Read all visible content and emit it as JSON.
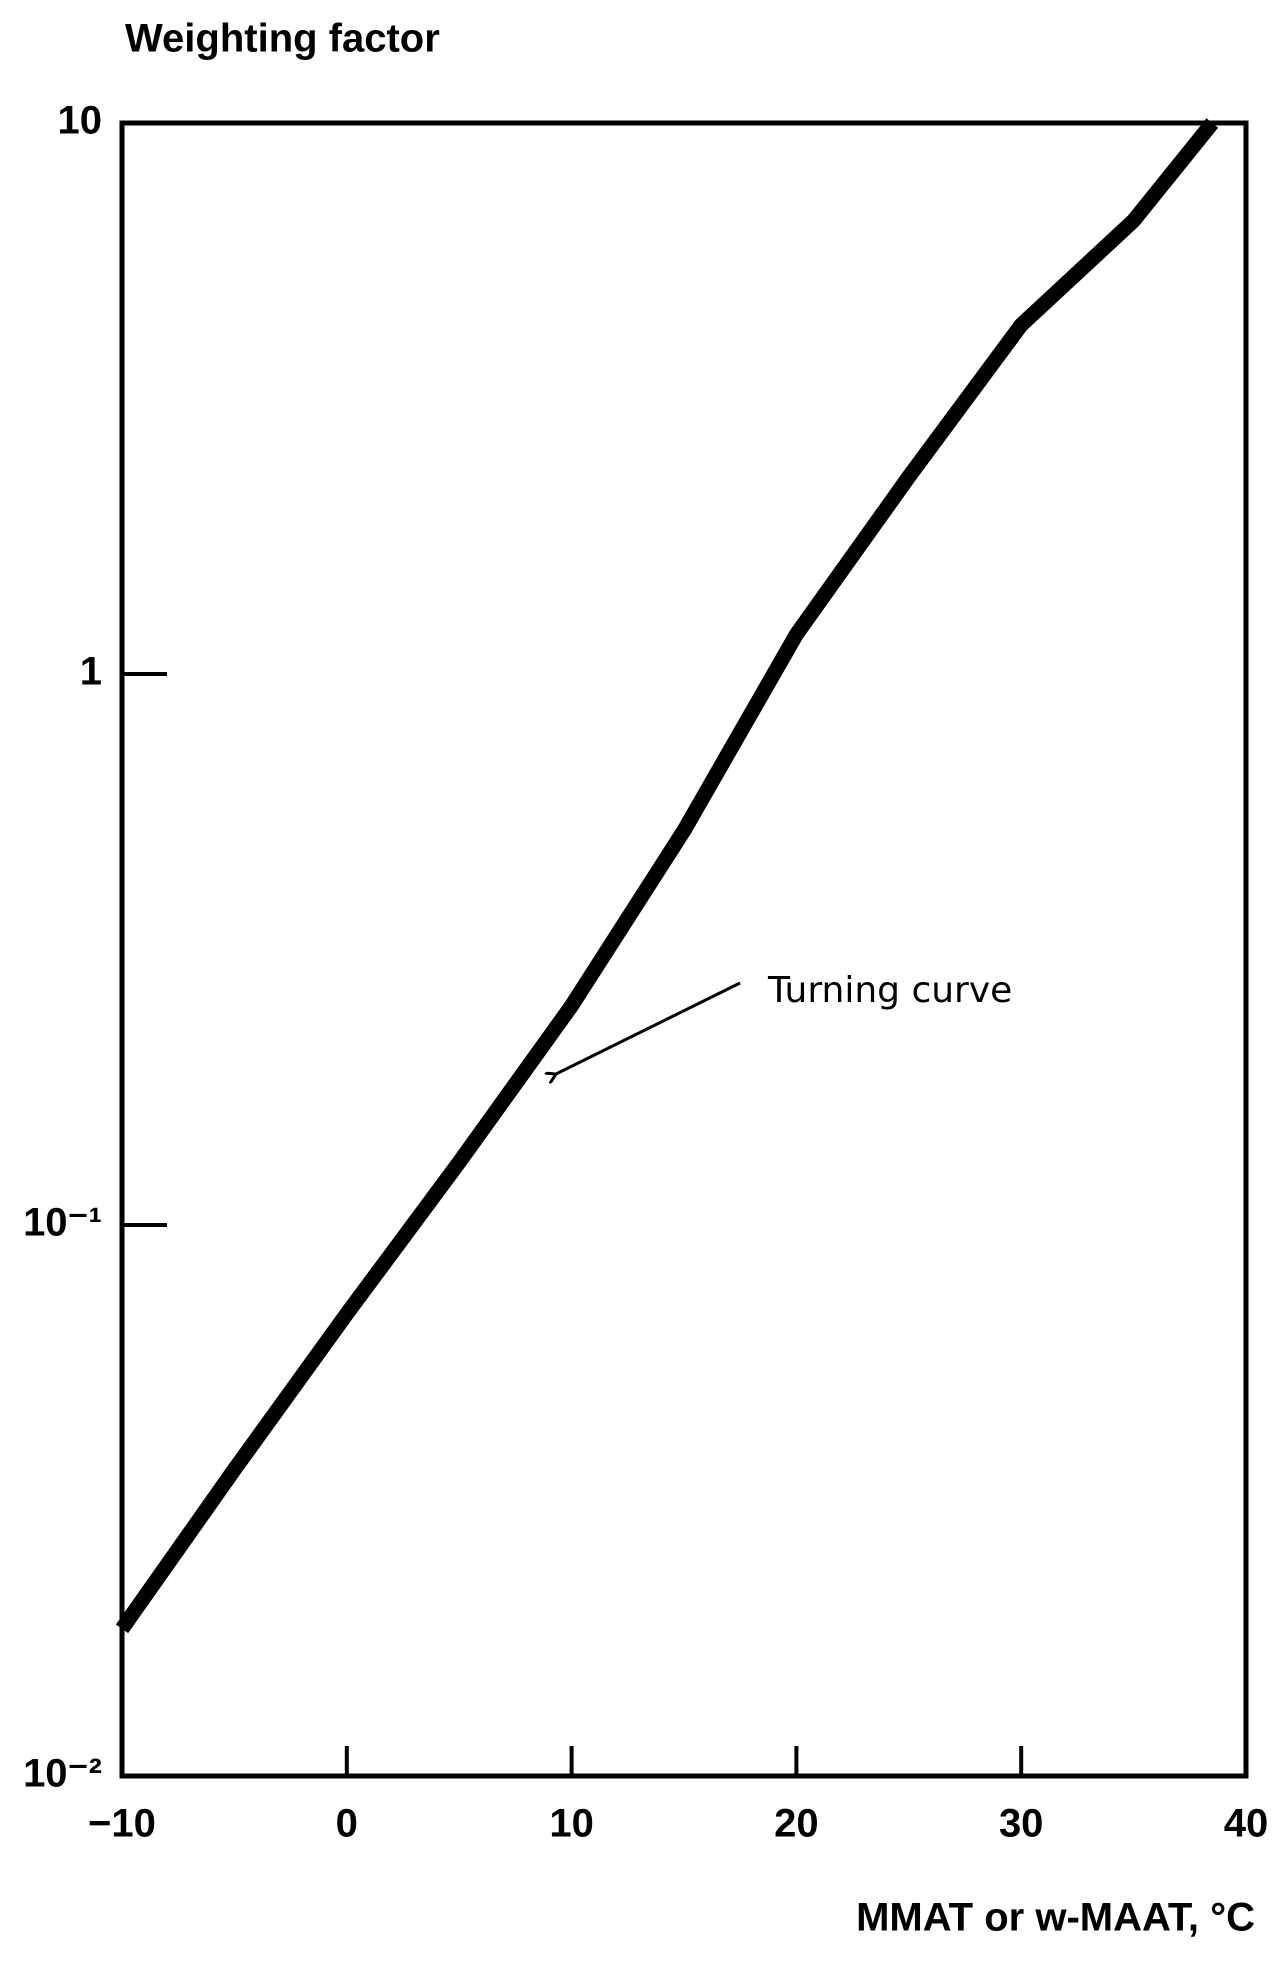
{
  "chart_data": {
    "type": "line",
    "title": "Weighting factor",
    "x_label": "MMAT or w-MAAT, °C",
    "annotation": "Turning curve",
    "log_y": true,
    "x": [
      -10,
      -5,
      0,
      5,
      10,
      15,
      20,
      25,
      30,
      35,
      38.5
    ],
    "series": [
      {
        "name": "Turning curve",
        "color": "#000000",
        "values": [
          0.0185,
          0.036,
          0.069,
          0.13,
          0.25,
          0.52,
          1.18,
          2.28,
          4.3,
          6.65,
          10
        ]
      }
    ],
    "xlim": [
      -10,
      40
    ],
    "xticks": [
      {
        "value": -10,
        "label": "−10"
      },
      0,
      10,
      20,
      30,
      40
    ],
    "ylim": [
      0.01,
      10
    ],
    "yticks": [
      {
        "value": 0.01,
        "label": "10⁻²"
      },
      {
        "value": 0.1,
        "label": "10⁻¹"
      },
      1,
      10
    ]
  }
}
